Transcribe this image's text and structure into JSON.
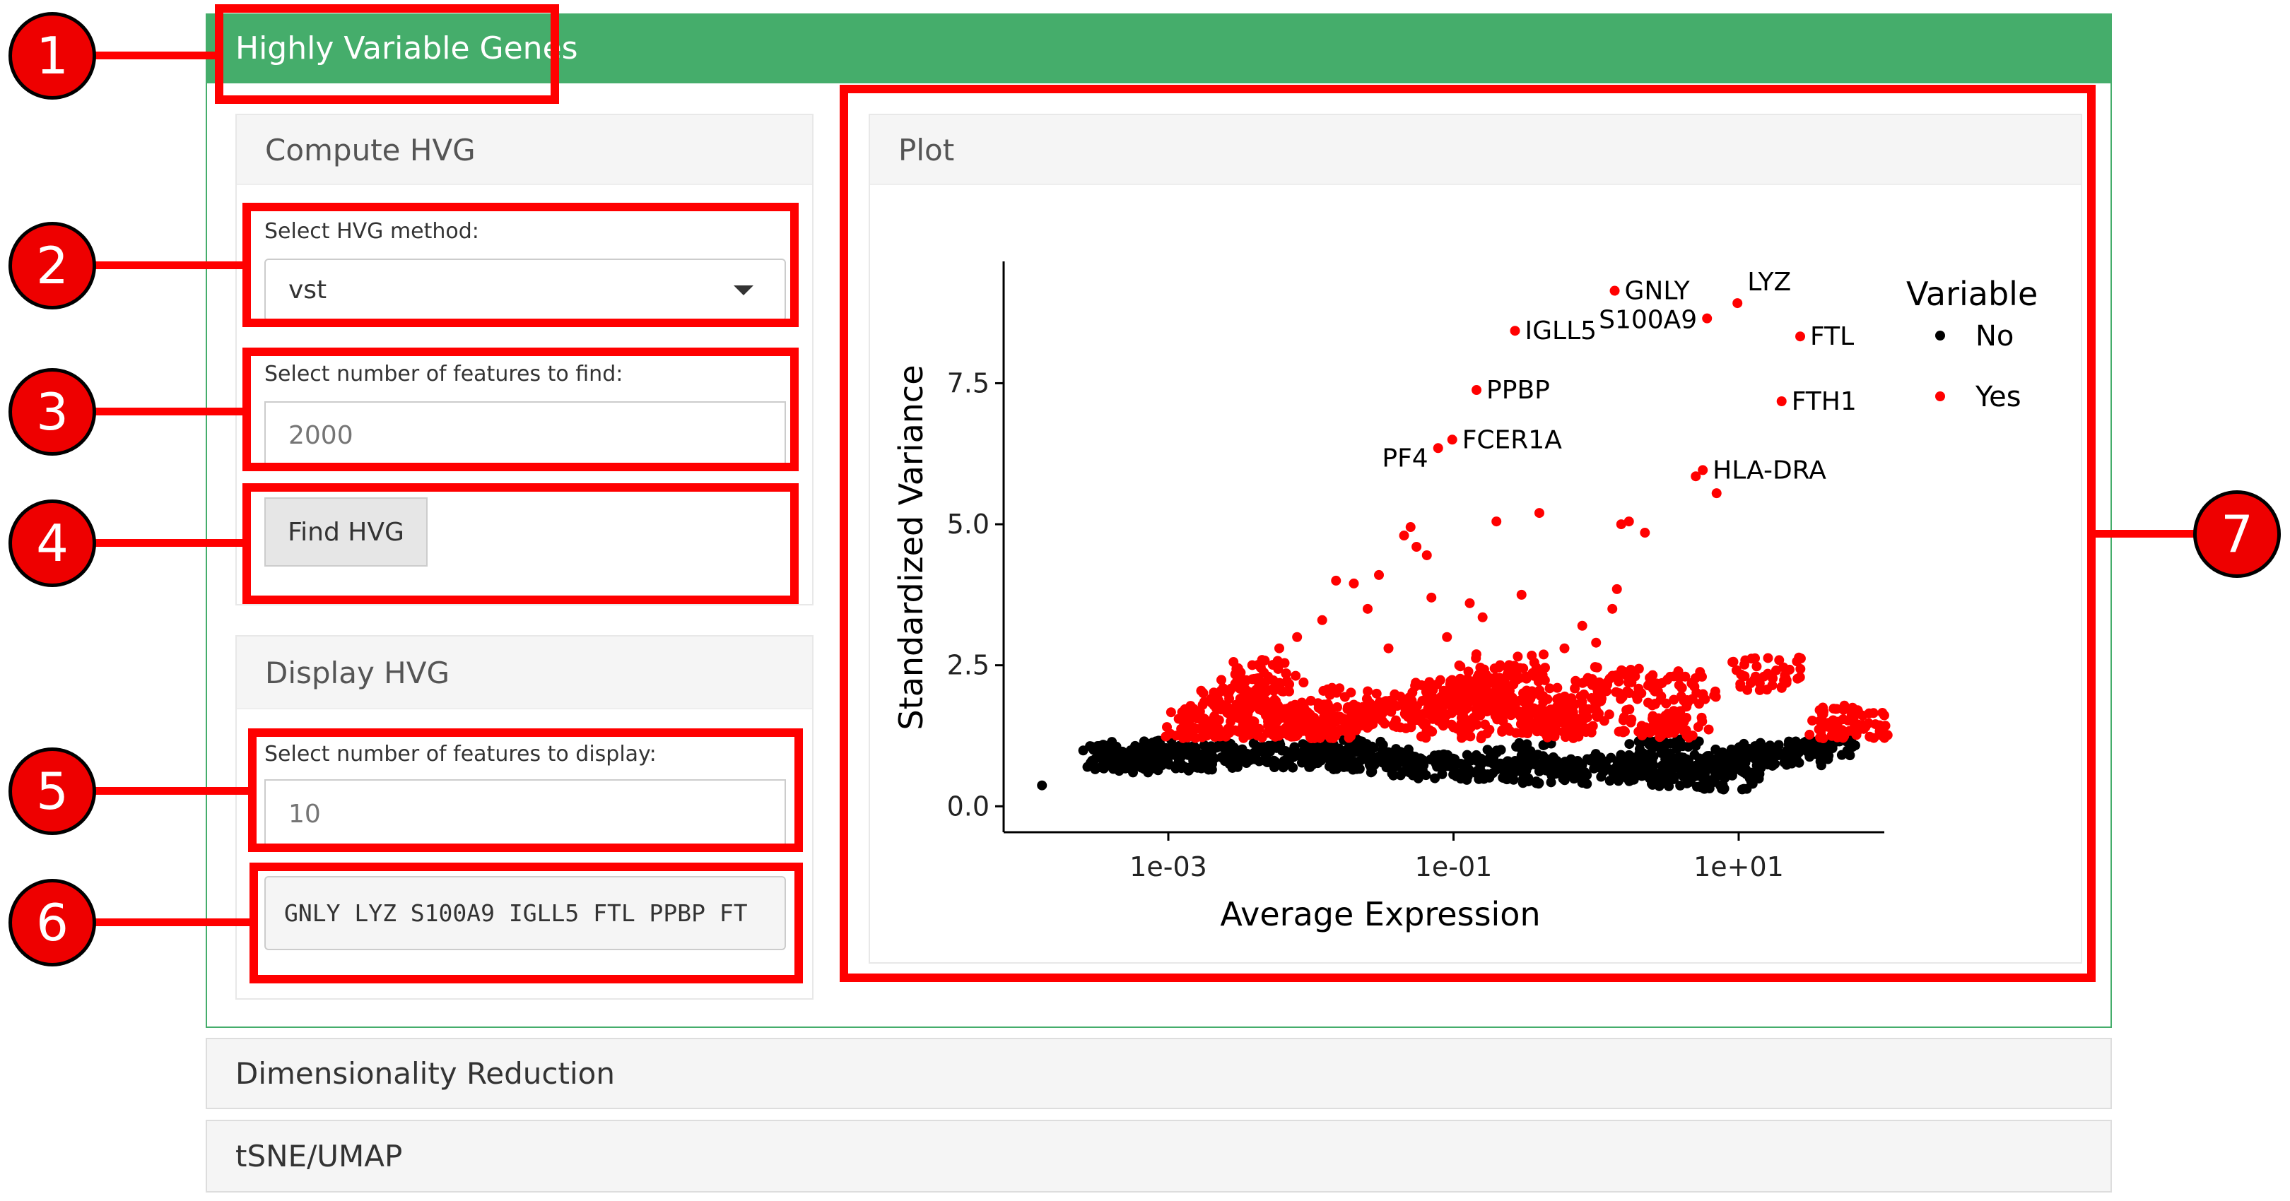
{
  "section": {
    "title": "Highly Variable Genes"
  },
  "compute": {
    "title": "Compute HVG",
    "method_label": "Select HVG method:",
    "method_value": "vst",
    "nfeatures_label": "Select number of features to find:",
    "nfeatures_placeholder": "2000",
    "find_button": "Find HVG"
  },
  "display": {
    "title": "Display HVG",
    "ndisplay_label": "Select number of features to display:",
    "ndisplay_placeholder": "10",
    "output_text": "GNLY LYZ S100A9 IGLL5 FTL PPBP FT"
  },
  "plot_panel": {
    "title": "Plot"
  },
  "collapsed_sections": [
    "Dimensionality Reduction",
    "tSNE/UMAP"
  ],
  "callouts": [
    "1",
    "2",
    "3",
    "4",
    "5",
    "6",
    "7"
  ],
  "colors": {
    "header_green": "#45ad6b",
    "callout_red": "#ff0000",
    "variable_yes": "#ff0000",
    "variable_no": "#000000"
  },
  "chart_data": {
    "type": "scatter",
    "xlabel": "Average Expression",
    "ylabel": "Standardized Variance",
    "x_scale": "log10",
    "xlim": [
      7e-05,
      105
    ],
    "ylim": [
      -0.46,
      9.66
    ],
    "x_ticks": [
      {
        "value": 0.001,
        "label": "1e-03"
      },
      {
        "value": 0.1,
        "label": "1e-01"
      },
      {
        "value": 10,
        "label": "1e+01"
      }
    ],
    "y_ticks": [
      {
        "value": 0,
        "label": "0.0"
      },
      {
        "value": 2.5,
        "label": "2.5"
      },
      {
        "value": 5,
        "label": "5.0"
      },
      {
        "value": 7.5,
        "label": "7.5"
      }
    ],
    "grid": false,
    "legend": {
      "title": "Variable",
      "position": "right",
      "entries": [
        {
          "label": "No",
          "color": "#000000"
        },
        {
          "label": "Yes",
          "color": "#ff0000"
        }
      ]
    },
    "series": [
      {
        "name": "No",
        "color": "#000000",
        "points": [
          [
            0.00013,
            0.37
          ],
          [
            0.00045,
            0.8
          ],
          [
            0.0005,
            0.88
          ],
          [
            0.0006,
            0.95
          ],
          [
            0.0008,
            0.85
          ],
          [
            0.0012,
            0.85
          ],
          [
            0.002,
            0.9
          ],
          [
            0.004,
            0.95
          ],
          [
            0.008,
            0.9
          ],
          [
            0.015,
            0.88
          ],
          [
            0.03,
            0.82
          ],
          [
            0.06,
            0.76
          ],
          [
            0.1,
            0.7
          ],
          [
            0.2,
            0.65
          ],
          [
            0.4,
            0.62
          ],
          [
            0.8,
            0.62
          ],
          [
            1.5,
            0.72
          ],
          [
            2.5,
            0.58
          ],
          [
            4,
            0.62
          ],
          [
            6,
            0.7
          ],
          [
            10,
            0.8
          ],
          [
            15,
            0.9
          ],
          [
            25,
            0.95
          ],
          [
            40,
            1.1
          ],
          [
            3,
            1.05
          ],
          [
            8,
            0.5
          ],
          [
            0.02,
            1.0
          ],
          [
            0.3,
            0.9
          ]
        ]
      },
      {
        "name": "Yes",
        "color": "#ff0000",
        "points": [
          [
            0.0017,
            1.37
          ],
          [
            0.0022,
            1.5
          ],
          [
            0.003,
            1.8
          ],
          [
            0.004,
            2.0
          ],
          [
            0.005,
            2.3
          ],
          [
            0.006,
            2.8
          ],
          [
            0.008,
            3.0
          ],
          [
            0.012,
            3.3
          ],
          [
            0.015,
            4.0
          ],
          [
            0.02,
            3.95
          ],
          [
            0.025,
            3.5
          ],
          [
            0.03,
            4.1
          ],
          [
            0.035,
            2.8
          ],
          [
            0.045,
            4.8
          ],
          [
            0.05,
            4.95
          ],
          [
            0.055,
            4.6
          ],
          [
            0.065,
            4.45
          ],
          [
            0.07,
            3.7
          ],
          [
            0.09,
            3.0
          ],
          [
            0.13,
            3.6
          ],
          [
            0.16,
            3.35
          ],
          [
            0.2,
            5.05
          ],
          [
            0.3,
            3.75
          ],
          [
            0.4,
            5.2
          ],
          [
            0.6,
            2.8
          ],
          [
            0.8,
            3.2
          ],
          [
            1.5,
            5.0
          ],
          [
            1.7,
            5.05
          ],
          [
            2.2,
            4.85
          ],
          [
            1.3,
            3.5
          ],
          [
            1.4,
            3.85
          ],
          [
            1.0,
            2.9
          ],
          [
            1.2,
            2.2
          ],
          [
            2.5,
            1.6
          ],
          [
            3.5,
            1.3
          ],
          [
            5,
            5.85
          ],
          [
            7,
            5.55
          ],
          [
            4,
            2.1
          ],
          [
            16,
            2.35
          ],
          [
            50,
            1.5
          ],
          [
            65,
            1.45
          ],
          [
            0.55,
            1.6
          ],
          [
            0.004,
            1.5
          ],
          [
            0.008,
            1.6
          ],
          [
            0.015,
            1.5
          ],
          [
            0.02,
            1.8
          ],
          [
            0.03,
            1.6
          ],
          [
            0.05,
            1.7
          ],
          [
            0.08,
            1.9
          ],
          [
            0.12,
            2.0
          ],
          [
            0.15,
            2.2
          ],
          [
            0.2,
            1.8
          ],
          [
            0.3,
            1.6
          ],
          [
            0.5,
            1.5
          ],
          [
            0.1,
            1.4
          ],
          [
            0.25,
            2.4
          ],
          [
            0.012,
            1.3
          ],
          [
            0.7,
            1.8
          ],
          [
            0.006,
            1.35
          ]
        ]
      }
    ],
    "labeled_points": [
      {
        "label": "GNLY",
        "x": 1.35,
        "y": 9.14
      },
      {
        "label": "LYZ",
        "x": 9.8,
        "y": 8.92
      },
      {
        "label": "S100A9",
        "x": 6.0,
        "y": 8.65
      },
      {
        "label": "FTL",
        "x": 27,
        "y": 8.33
      },
      {
        "label": "IGLL5",
        "x": 0.27,
        "y": 8.43
      },
      {
        "label": "PPBP",
        "x": 0.145,
        "y": 7.38
      },
      {
        "label": "FTH1",
        "x": 20,
        "y": 7.18
      },
      {
        "label": "FCER1A",
        "x": 0.098,
        "y": 6.5
      },
      {
        "label": "PF4",
        "x": 0.078,
        "y": 6.35
      },
      {
        "label": "HLA-DRA",
        "x": 5.6,
        "y": 5.96
      }
    ]
  }
}
